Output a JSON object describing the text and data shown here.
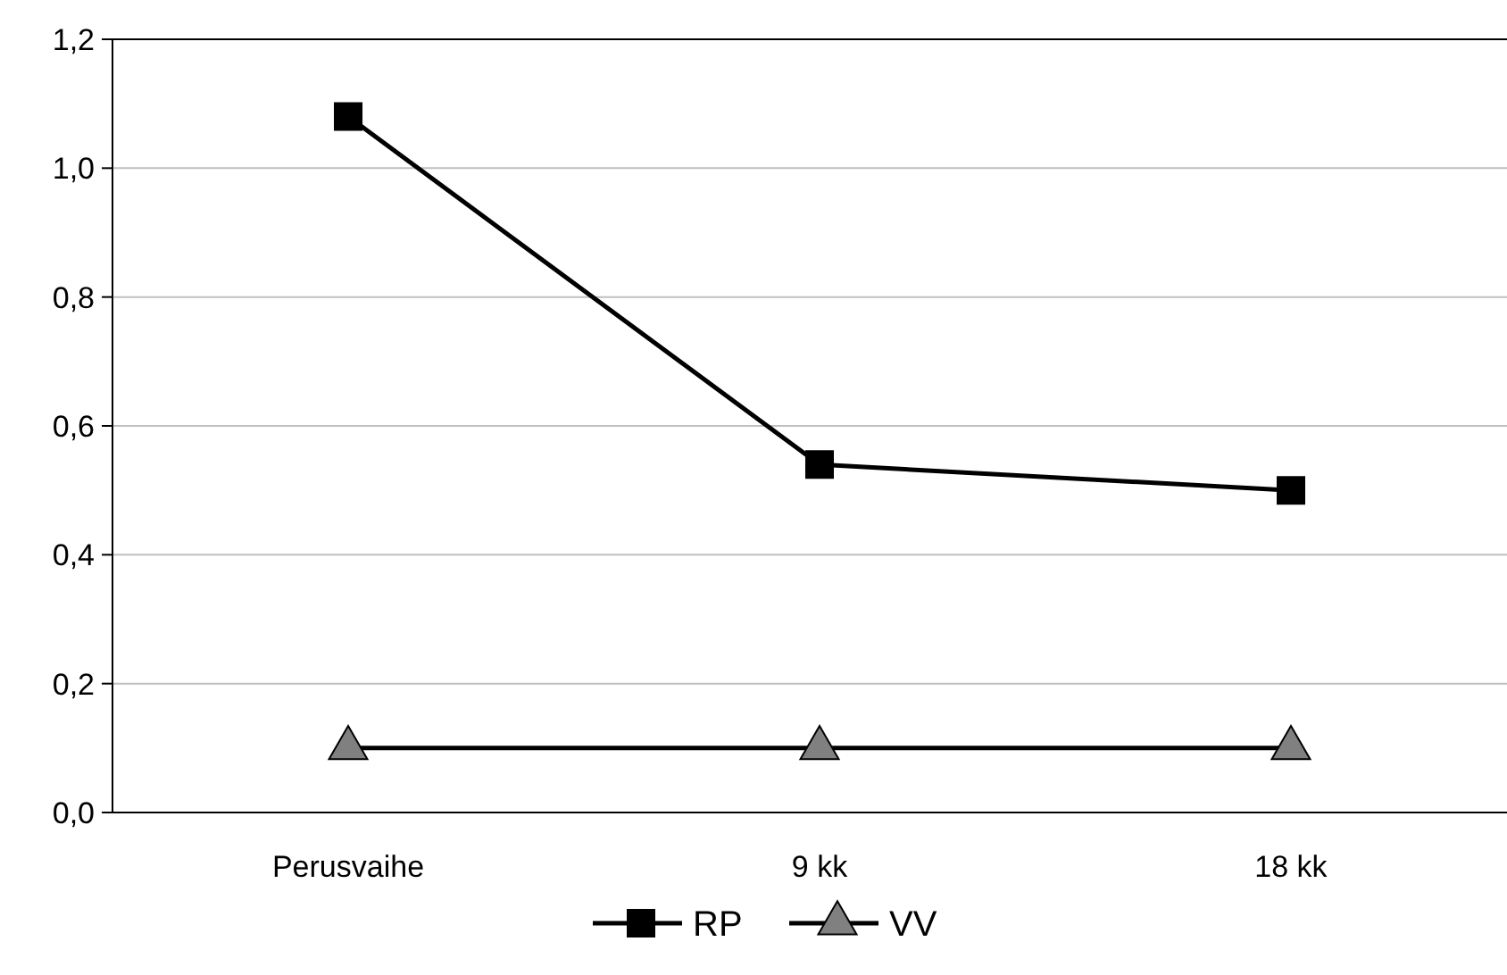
{
  "chart_data": {
    "type": "line",
    "categories": [
      "Perusvaihe",
      "9 kk",
      "18 kk"
    ],
    "series": [
      {
        "name": "RP",
        "color": "#000000",
        "marker": "square",
        "values": [
          1.08,
          0.54,
          0.5
        ]
      },
      {
        "name": "VV",
        "color": "#808080",
        "marker": "triangle",
        "values": [
          0.1,
          0.1,
          0.1
        ]
      }
    ],
    "ylim": [
      0,
      1.2
    ],
    "yticks": [
      {
        "value": 0,
        "label": "0,0"
      },
      {
        "value": 0.2,
        "label": "0,2"
      },
      {
        "value": 0.4,
        "label": "0,4"
      },
      {
        "value": 0.6,
        "label": "0,6"
      },
      {
        "value": 0.8,
        "label": "0,8"
      },
      {
        "value": 1,
        "label": "1,0"
      },
      {
        "value": 1.2,
        "label": "1,2"
      }
    ],
    "grid": "y",
    "legend": "bottom",
    "line_style": "solid"
  }
}
